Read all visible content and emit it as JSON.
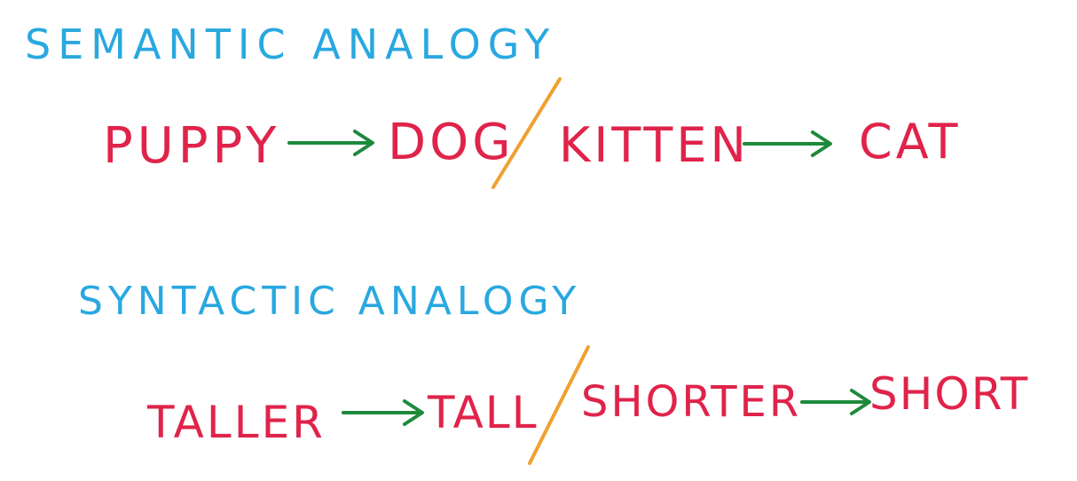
{
  "colors": {
    "heading": "#29A8E0",
    "word": "#E0234A",
    "arrow": "#1E8A3C",
    "slash": "#F0A030",
    "background": "#FFFFFF"
  },
  "semantic": {
    "heading": "SEMANTIC ANALOGY",
    "words": [
      "PUPPY",
      "DOG",
      "KITTEN",
      "CAT"
    ]
  },
  "syntactic": {
    "heading": "SYNTACTIC ANALOGY",
    "words": [
      "TALLER",
      "TALL",
      "SHORTER",
      "SHORT"
    ]
  },
  "icons": {
    "arrow": "right-arrow-icon",
    "separator": "slash-divider"
  }
}
